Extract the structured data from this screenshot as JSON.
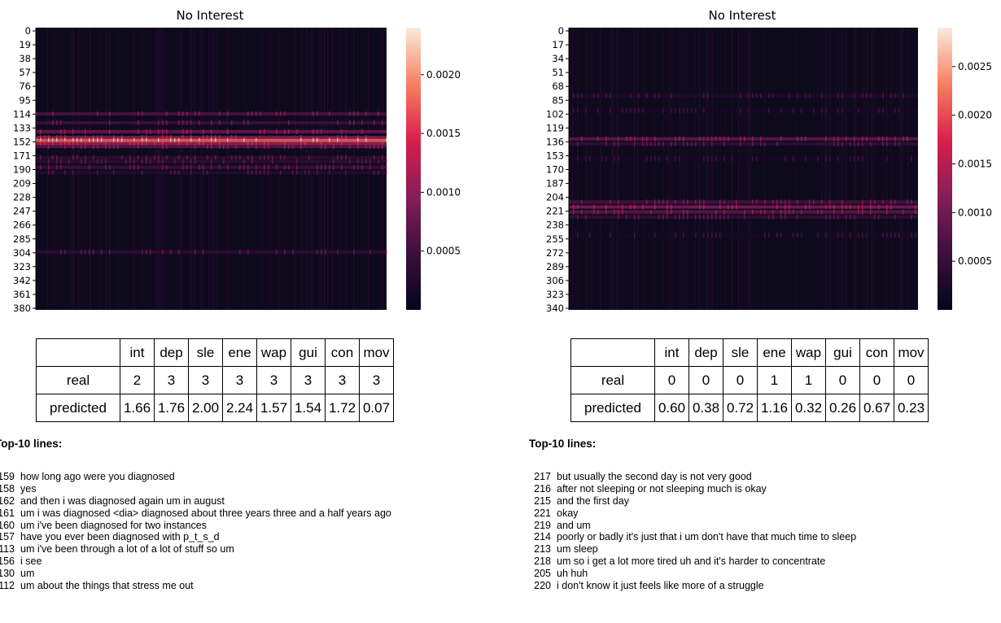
{
  "panels": [
    {
      "title": "No Interest",
      "yticks": [
        "0",
        "19",
        "38",
        "57",
        "76",
        "95",
        "114",
        "133",
        "152",
        "171",
        "190",
        "209",
        "228",
        "247",
        "266",
        "285",
        "304",
        "323",
        "342",
        "361",
        "380"
      ],
      "colorbar_ticks": [
        "0.0020",
        "0.0015",
        "0.0010",
        "0.0005"
      ],
      "table": {
        "headers": [
          "",
          "int",
          "dep",
          "sle",
          "ene",
          "wap",
          "gui",
          "con",
          "mov"
        ],
        "rows": [
          {
            "label": "real",
            "values": [
              "2",
              "3",
              "3",
              "3",
              "3",
              "3",
              "3",
              "3"
            ]
          },
          {
            "label": "predicted",
            "values": [
              "1.66",
              "1.76",
              "2.00",
              "2.24",
              "1.57",
              "1.54",
              "1.72",
              "0.07"
            ]
          }
        ]
      },
      "top_heading": "Top-10 lines:",
      "top_lines": [
        {
          "num": "159",
          "text": "how long ago were you diagnosed"
        },
        {
          "num": "158",
          "text": "yes"
        },
        {
          "num": "162",
          "text": "and then i was diagnosed again um in august"
        },
        {
          "num": "161",
          "text": "um i was diagnosed <dia> diagnosed about three years three and a half years ago"
        },
        {
          "num": "160",
          "text": "um i've been diagnosed for two instances"
        },
        {
          "num": "157",
          "text": "have you ever been diagnosed with p_t_s_d"
        },
        {
          "num": "113",
          "text": "um i've been through a lot of a lot of stuff so um"
        },
        {
          "num": "156",
          "text": "i see"
        },
        {
          "num": "130",
          "text": "um"
        },
        {
          "num": "112",
          "text": "um about the things that stress me out"
        }
      ]
    },
    {
      "title": "No Interest",
      "yticks": [
        "0",
        "17",
        "34",
        "51",
        "68",
        "85",
        "102",
        "119",
        "136",
        "153",
        "170",
        "187",
        "204",
        "221",
        "238",
        "255",
        "272",
        "289",
        "306",
        "323",
        "340"
      ],
      "colorbar_ticks": [
        "0.0025",
        "0.0020",
        "0.0015",
        "0.0010",
        "0.0005"
      ],
      "table": {
        "headers": [
          "",
          "int",
          "dep",
          "sle",
          "ene",
          "wap",
          "gui",
          "con",
          "mov"
        ],
        "rows": [
          {
            "label": "real",
            "values": [
              "0",
              "0",
              "0",
              "1",
              "1",
              "0",
              "0",
              "0"
            ]
          },
          {
            "label": "predicted",
            "values": [
              "0.60",
              "0.38",
              "0.72",
              "1.16",
              "0.32",
              "0.26",
              "0.67",
              "0.23"
            ]
          }
        ]
      },
      "top_heading": "Top-10 lines:",
      "top_lines": [
        {
          "num": "217",
          "text": "but usually the second day is not very good"
        },
        {
          "num": "216",
          "text": "after not sleeping or not sleeping much is okay"
        },
        {
          "num": "215",
          "text": "and the first day"
        },
        {
          "num": "221",
          "text": "okay"
        },
        {
          "num": "219",
          "text": "and um"
        },
        {
          "num": "214",
          "text": "poorly or badly it's just that i um don't have that much time to sleep"
        },
        {
          "num": "213",
          "text": "um sleep"
        },
        {
          "num": "218",
          "text": "um so i get a lot more tired uh and it's harder to concentrate"
        },
        {
          "num": "205",
          "text": "uh huh"
        },
        {
          "num": "220",
          "text": "i don't know it just feels like more of a struggle"
        }
      ]
    }
  ],
  "chart_data": [
    {
      "type": "heatmap",
      "title": "No Interest",
      "rows": 381,
      "ylim": [
        0,
        380
      ],
      "ytick_values": [
        0,
        19,
        38,
        57,
        76,
        95,
        114,
        133,
        152,
        171,
        190,
        209,
        228,
        247,
        266,
        285,
        304,
        323,
        342,
        361,
        380
      ],
      "colorbar": {
        "colormap": "rocket",
        "range": [
          0.0,
          0.0024
        ],
        "ticks": [
          0.002,
          0.0015,
          0.001,
          0.0005
        ]
      },
      "row_bands": [
        {
          "row": 116,
          "value": 0.0006
        },
        {
          "row": 128,
          "value": 0.0005
        },
        {
          "row": 140,
          "value": 0.0008
        },
        {
          "row": 148,
          "value": 0.001
        },
        {
          "row": 152,
          "value": 0.0018
        },
        {
          "row": 156,
          "value": 0.0011
        },
        {
          "row": 160,
          "value": 0.0007
        },
        {
          "row": 175,
          "value": 0.0004
        },
        {
          "row": 180,
          "value": 0.0004
        },
        {
          "row": 188,
          "value": 0.0005
        },
        {
          "row": 195,
          "value": 0.0003
        },
        {
          "row": 302,
          "value": 0.0004
        }
      ]
    },
    {
      "type": "heatmap",
      "title": "No Interest",
      "rows": 341,
      "ylim": [
        0,
        340
      ],
      "ytick_values": [
        0,
        17,
        34,
        51,
        68,
        85,
        102,
        119,
        136,
        153,
        170,
        187,
        204,
        221,
        238,
        255,
        272,
        289,
        306,
        323,
        340
      ],
      "colorbar": {
        "colormap": "rocket",
        "range": [
          0.0,
          0.0029
        ],
        "ticks": [
          0.0025,
          0.002,
          0.0015,
          0.001,
          0.0005
        ]
      },
      "row_bands": [
        {
          "row": 82,
          "value": 0.0003
        },
        {
          "row": 100,
          "value": 0.0002
        },
        {
          "row": 134,
          "value": 0.0009
        },
        {
          "row": 140,
          "value": 0.0005
        },
        {
          "row": 158,
          "value": 0.0002
        },
        {
          "row": 210,
          "value": 0.0007
        },
        {
          "row": 216,
          "value": 0.0011
        },
        {
          "row": 222,
          "value": 0.0009
        },
        {
          "row": 228,
          "value": 0.0005
        },
        {
          "row": 250,
          "value": 0.0002
        }
      ]
    }
  ]
}
